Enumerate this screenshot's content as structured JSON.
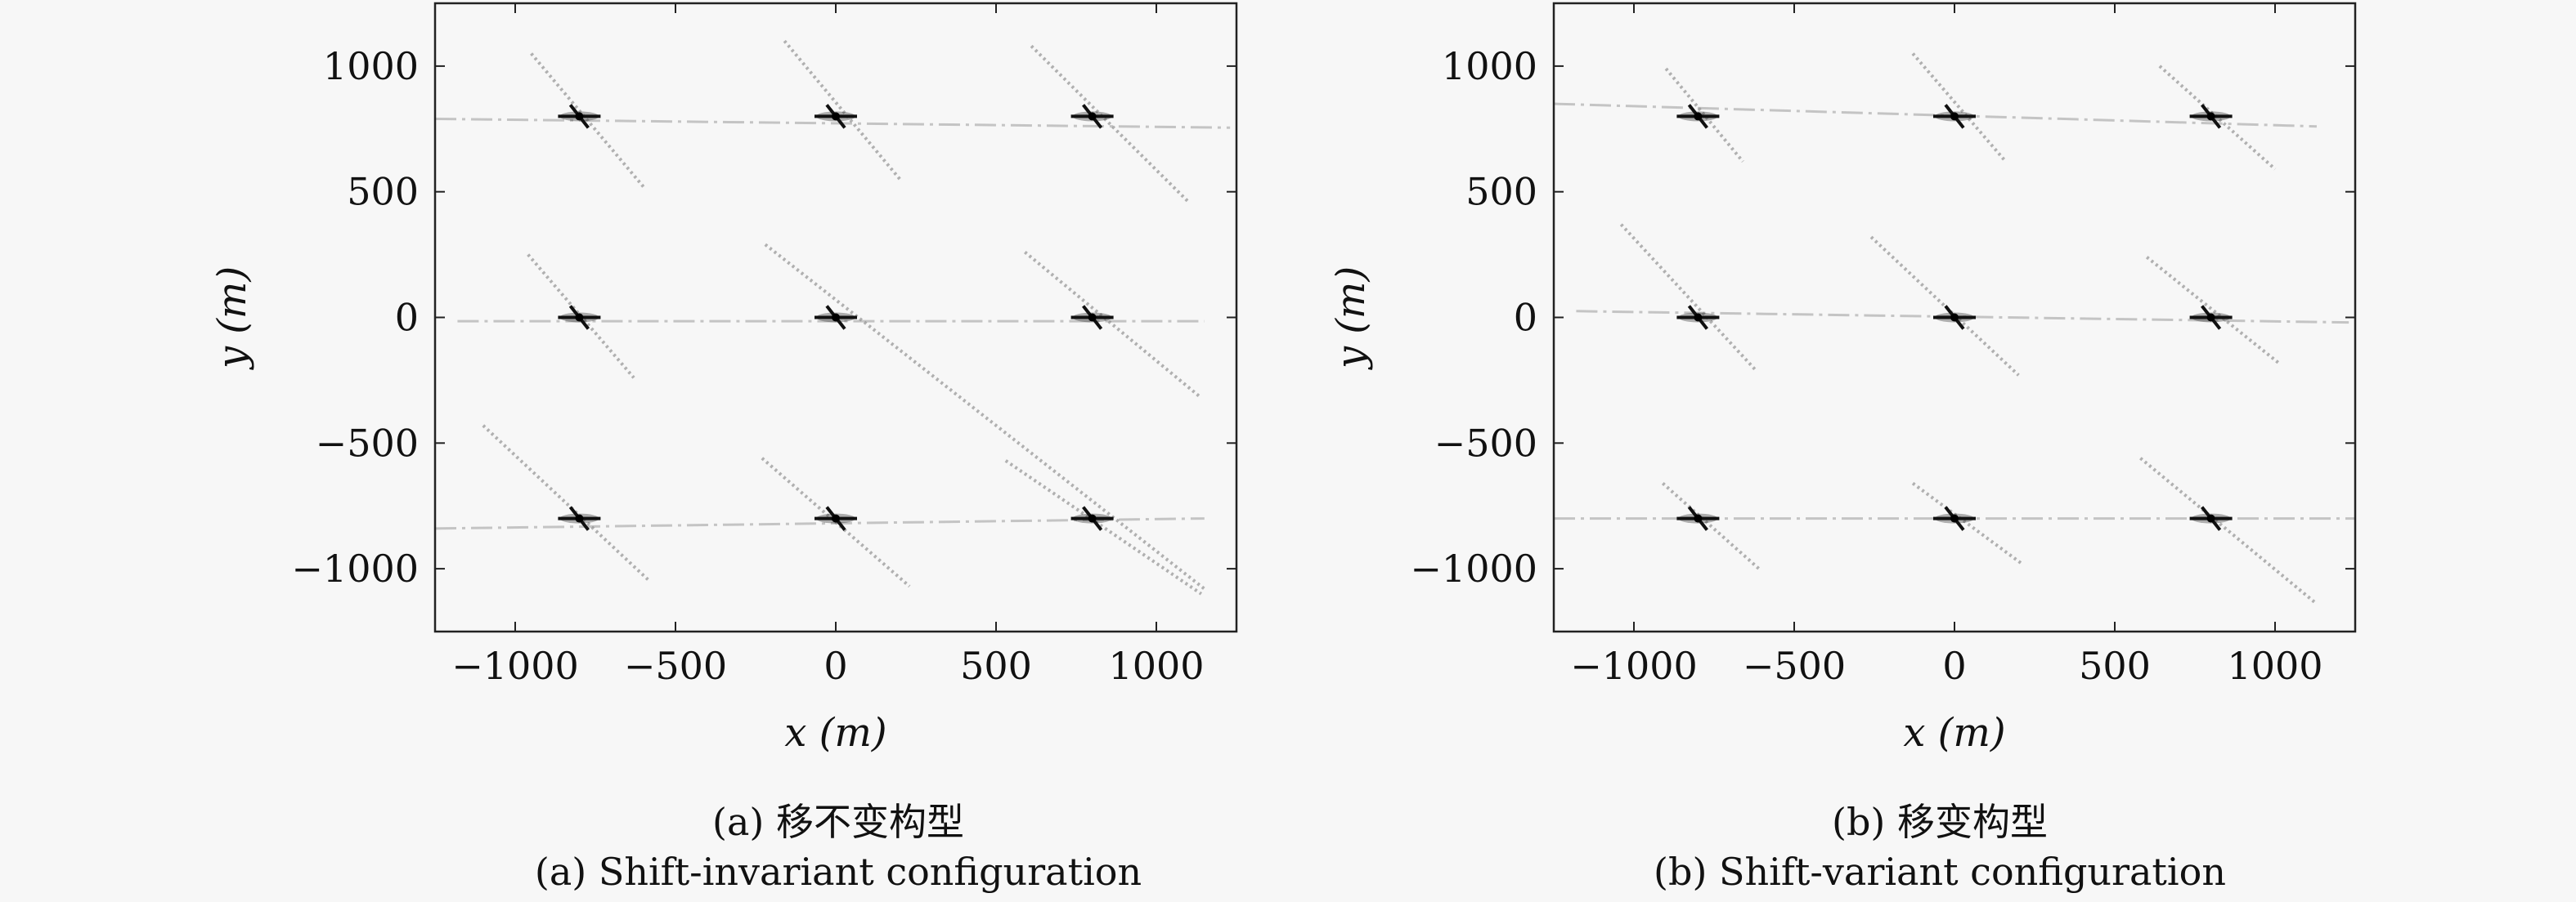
{
  "figure": {
    "panels": [
      {
        "caption_cn": "(a) 移不变构型",
        "caption_en": "(a) Shift-invariant configuration"
      },
      {
        "caption_cn": "(b) 移变构型",
        "caption_en": "(b) Shift-variant configuration"
      }
    ]
  },
  "chart_data": [
    {
      "type": "scatter",
      "title": "(a) 移不变构型 / (a) Shift-invariant configuration",
      "xlabel": "x (m)",
      "ylabel": "y (m)",
      "xlim": [
        -1250,
        1250
      ],
      "ylim": [
        -1250,
        1250
      ],
      "xticks": [
        -1000,
        -500,
        0,
        500,
        1000
      ],
      "yticks": [
        -1000,
        -500,
        0,
        500,
        1000
      ],
      "xticklabels": [
        "−1000",
        "−500",
        "0",
        "500",
        "1000"
      ],
      "yticklabels": [
        "−1000",
        "−500",
        "0",
        "500",
        "1000"
      ],
      "grid": false,
      "colormap": "grayscale (darker = stronger response)",
      "points": [
        {
          "x": -800,
          "y": 800
        },
        {
          "x": 0,
          "y": 800
        },
        {
          "x": 800,
          "y": 800
        },
        {
          "x": -800,
          "y": 0
        },
        {
          "x": 0,
          "y": 0
        },
        {
          "x": 800,
          "y": 0
        },
        {
          "x": -800,
          "y": -800
        },
        {
          "x": 0,
          "y": -800
        },
        {
          "x": 800,
          "y": -800
        }
      ],
      "sidelobe_diagonals": [
        {
          "x1": -950,
          "y1": 1050,
          "x2": -600,
          "y2": 520
        },
        {
          "x1": -160,
          "y1": 1100,
          "x2": 200,
          "y2": 550
        },
        {
          "x1": 610,
          "y1": 1080,
          "x2": 1100,
          "y2": 460
        },
        {
          "x1": -960,
          "y1": 250,
          "x2": -630,
          "y2": -240
        },
        {
          "x1": -220,
          "y1": 290,
          "x2": 1150,
          "y2": -1080
        },
        {
          "x1": 590,
          "y1": 260,
          "x2": 1140,
          "y2": -320
        },
        {
          "x1": -1100,
          "y1": -430,
          "x2": -580,
          "y2": -1050
        },
        {
          "x1": -230,
          "y1": -560,
          "x2": 230,
          "y2": -1070
        },
        {
          "x1": 530,
          "y1": -570,
          "x2": 1140,
          "y2": -1100
        }
      ],
      "sidelobe_horizontals": [
        {
          "x1": -1250,
          "y1": 790,
          "x2": 1230,
          "y2": 755
        },
        {
          "x1": -1180,
          "y1": -15,
          "x2": 1150,
          "y2": -15
        },
        {
          "x1": -1250,
          "y1": -840,
          "x2": 1150,
          "y2": -800
        }
      ]
    },
    {
      "type": "scatter",
      "title": "(b) 移变构型 / (b) Shift-variant configuration",
      "xlabel": "x (m)",
      "ylabel": "y (m)",
      "xlim": [
        -1250,
        1250
      ],
      "ylim": [
        -1250,
        1250
      ],
      "xticks": [
        -1000,
        -500,
        0,
        500,
        1000
      ],
      "yticks": [
        -1000,
        -500,
        0,
        500,
        1000
      ],
      "xticklabels": [
        "−1000",
        "−500",
        "0",
        "500",
        "1000"
      ],
      "yticklabels": [
        "−1000",
        "−500",
        "0",
        "500",
        "1000"
      ],
      "grid": false,
      "colormap": "grayscale (darker = stronger response)",
      "points": [
        {
          "x": -800,
          "y": 800
        },
        {
          "x": 0,
          "y": 800
        },
        {
          "x": 800,
          "y": 800
        },
        {
          "x": -800,
          "y": 0
        },
        {
          "x": 0,
          "y": 0
        },
        {
          "x": 800,
          "y": 0
        },
        {
          "x": -800,
          "y": -800
        },
        {
          "x": 0,
          "y": -800
        },
        {
          "x": 800,
          "y": -800
        }
      ],
      "sidelobe_diagonals": [
        {
          "x1": -900,
          "y1": 990,
          "x2": -660,
          "y2": 620
        },
        {
          "x1": -130,
          "y1": 1050,
          "x2": 160,
          "y2": 620
        },
        {
          "x1": 640,
          "y1": 1000,
          "x2": 1000,
          "y2": 590
        },
        {
          "x1": -1040,
          "y1": 370,
          "x2": -620,
          "y2": -210
        },
        {
          "x1": -260,
          "y1": 320,
          "x2": 200,
          "y2": -230
        },
        {
          "x1": 600,
          "y1": 240,
          "x2": 1010,
          "y2": -180
        },
        {
          "x1": -910,
          "y1": -660,
          "x2": -610,
          "y2": -1000
        },
        {
          "x1": -130,
          "y1": -660,
          "x2": 210,
          "y2": -980
        },
        {
          "x1": 580,
          "y1": -560,
          "x2": 1130,
          "y2": -1140
        }
      ],
      "sidelobe_horizontals": [
        {
          "x1": -1250,
          "y1": 850,
          "x2": 1130,
          "y2": 760
        },
        {
          "x1": -1180,
          "y1": 25,
          "x2": 1230,
          "y2": -20
        },
        {
          "x1": -1250,
          "y1": -800,
          "x2": 1250,
          "y2": -800
        }
      ]
    }
  ]
}
